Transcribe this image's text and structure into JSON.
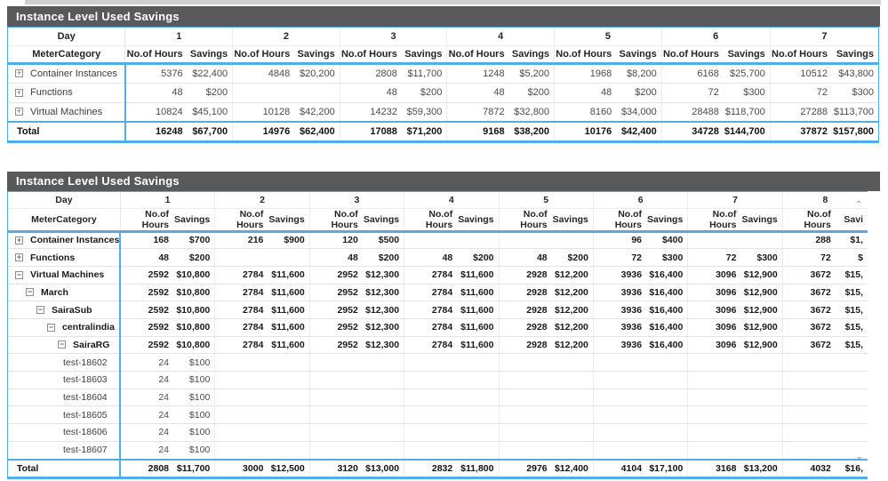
{
  "colors": {
    "accent_blue": "#55ACE0",
    "title_bar_bg": "#595959",
    "title_bar_text": "#FFFFFF",
    "gridline": "#E3E3E3",
    "body_text": "#4A4A4A",
    "bold_text": "#1A1A1A"
  },
  "icons": {
    "plus": "+",
    "minus": "−",
    "chevron_left": "‹",
    "chevron_right": "›"
  },
  "summary_table": {
    "title": "Instance Level Used Savings",
    "corner_day": "Day",
    "corner_category": "MeterCategory",
    "days": [
      {
        "label": "1",
        "sub": [
          "No.of Hours",
          "Savings"
        ]
      },
      {
        "label": "2",
        "sub": [
          "No.of Hours",
          "Savings"
        ]
      },
      {
        "label": "3",
        "sub": [
          "No.of Hours",
          "Savings"
        ]
      },
      {
        "label": "4",
        "sub": [
          "No.of Hours",
          "Savings"
        ]
      },
      {
        "label": "5",
        "sub": [
          "No.of Hours",
          "Savings"
        ]
      },
      {
        "label": "6",
        "sub": [
          "No.of Hours",
          "Savings"
        ]
      },
      {
        "label": "7",
        "sub": [
          "No.of Hours",
          "Savings"
        ]
      }
    ],
    "rows": [
      {
        "label": "Container Instances",
        "icon": "plus",
        "level": 0,
        "style": "normal",
        "cells": [
          "5376",
          "$22,400",
          "4848",
          "$20,200",
          "2808",
          "$11,700",
          "1248",
          "$5,200",
          "1968",
          "$8,200",
          "6168",
          "$25,700",
          "10512",
          "$43,800"
        ]
      },
      {
        "label": "Functions",
        "icon": "plus",
        "level": 0,
        "style": "normal",
        "cells": [
          "48",
          "$200",
          "",
          "",
          "48",
          "$200",
          "48",
          "$200",
          "48",
          "$200",
          "72",
          "$300",
          "72",
          "$300"
        ]
      },
      {
        "label": "Virtual Machines",
        "icon": "plus",
        "level": 0,
        "style": "normal",
        "cells": [
          "10824",
          "$45,100",
          "10128",
          "$42,200",
          "14232",
          "$59,300",
          "7872",
          "$32,800",
          "8160",
          "$34,000",
          "28488",
          "$118,700",
          "27288",
          "$113,700"
        ]
      },
      {
        "label": "Total",
        "icon": null,
        "level": 0,
        "style": "total",
        "cells": [
          "16248",
          "$67,700",
          "14976",
          "$62,400",
          "17088",
          "$71,200",
          "9168",
          "$38,200",
          "10176",
          "$42,400",
          "34728",
          "$144,700",
          "37872",
          "$157,800"
        ]
      }
    ]
  },
  "detail_table": {
    "title": "Instance Level Used Savings",
    "corner_day": "Day",
    "corner_category": "MeterCategory",
    "days": [
      {
        "label": "1",
        "sub": [
          "No.of Hours",
          "Savings"
        ]
      },
      {
        "label": "2",
        "sub": [
          "No.of Hours",
          "Savings"
        ]
      },
      {
        "label": "3",
        "sub": [
          "No.of Hours",
          "Savings"
        ]
      },
      {
        "label": "4",
        "sub": [
          "No.of Hours",
          "Savings"
        ]
      },
      {
        "label": "5",
        "sub": [
          "No.of Hours",
          "Savings"
        ]
      },
      {
        "label": "6",
        "sub": [
          "No.of Hours",
          "Savings"
        ]
      },
      {
        "label": "7",
        "sub": [
          "No.of Hours",
          "Savings"
        ]
      },
      {
        "label": "8",
        "sub": [
          "No.of Hours",
          "Savi"
        ]
      }
    ],
    "rows": [
      {
        "label": "Container Instances",
        "icon": "plus",
        "level": 0,
        "style": "bold",
        "cells": [
          "168",
          "$700",
          "216",
          "$900",
          "120",
          "$500",
          "",
          "",
          "",
          "",
          "96",
          "$400",
          "",
          "",
          "288",
          "$1,"
        ]
      },
      {
        "label": "Functions",
        "icon": "plus",
        "level": 0,
        "style": "bold",
        "cells": [
          "48",
          "$200",
          "",
          "",
          "48",
          "$200",
          "48",
          "$200",
          "48",
          "$200",
          "72",
          "$300",
          "72",
          "$300",
          "72",
          "$"
        ]
      },
      {
        "label": "Virtual Machines",
        "icon": "minus",
        "level": 0,
        "style": "bold",
        "cells": [
          "2592",
          "$10,800",
          "2784",
          "$11,600",
          "2952",
          "$12,300",
          "2784",
          "$11,600",
          "2928",
          "$12,200",
          "3936",
          "$16,400",
          "3096",
          "$12,900",
          "3672",
          "$15,"
        ]
      },
      {
        "label": "March",
        "icon": "minus",
        "level": 1,
        "style": "bold",
        "cells": [
          "2592",
          "$10,800",
          "2784",
          "$11,600",
          "2952",
          "$12,300",
          "2784",
          "$11,600",
          "2928",
          "$12,200",
          "3936",
          "$16,400",
          "3096",
          "$12,900",
          "3672",
          "$15,"
        ]
      },
      {
        "label": "SairaSub",
        "icon": "minus",
        "level": 2,
        "style": "bold",
        "cells": [
          "2592",
          "$10,800",
          "2784",
          "$11,600",
          "2952",
          "$12,300",
          "2784",
          "$11,600",
          "2928",
          "$12,200",
          "3936",
          "$16,400",
          "3096",
          "$12,900",
          "3672",
          "$15,"
        ]
      },
      {
        "label": "centralindia",
        "icon": "minus",
        "level": 3,
        "style": "bold",
        "cells": [
          "2592",
          "$10,800",
          "2784",
          "$11,600",
          "2952",
          "$12,300",
          "2784",
          "$11,600",
          "2928",
          "$12,200",
          "3936",
          "$16,400",
          "3096",
          "$12,900",
          "3672",
          "$15,"
        ]
      },
      {
        "label": "SairaRG",
        "icon": "minus",
        "level": 4,
        "style": "bold",
        "cells": [
          "2592",
          "$10,800",
          "2784",
          "$11,600",
          "2952",
          "$12,300",
          "2784",
          "$11,600",
          "2928",
          "$12,200",
          "3936",
          "$16,400",
          "3096",
          "$12,900",
          "3672",
          "$15,"
        ]
      },
      {
        "label": "test-18602",
        "icon": null,
        "level": 5,
        "style": "leaf",
        "cells": [
          "24",
          "$100",
          "",
          "",
          "",
          "",
          "",
          "",
          "",
          "",
          "",
          "",
          "",
          "",
          "",
          ""
        ]
      },
      {
        "label": "test-18603",
        "icon": null,
        "level": 5,
        "style": "leaf",
        "cells": [
          "24",
          "$100",
          "",
          "",
          "",
          "",
          "",
          "",
          "",
          "",
          "",
          "",
          "",
          "",
          "",
          ""
        ]
      },
      {
        "label": "test-18604",
        "icon": null,
        "level": 5,
        "style": "leaf",
        "cells": [
          "24",
          "$100",
          "",
          "",
          "",
          "",
          "",
          "",
          "",
          "",
          "",
          "",
          "",
          "",
          "",
          ""
        ]
      },
      {
        "label": "test-18605",
        "icon": null,
        "level": 5,
        "style": "leaf",
        "cells": [
          "24",
          "$100",
          "",
          "",
          "",
          "",
          "",
          "",
          "",
          "",
          "",
          "",
          "",
          "",
          "",
          ""
        ]
      },
      {
        "label": "test-18606",
        "icon": null,
        "level": 5,
        "style": "leaf",
        "cells": [
          "24",
          "$100",
          "",
          "",
          "",
          "",
          "",
          "",
          "",
          "",
          "",
          "",
          "",
          "",
          "",
          ""
        ]
      },
      {
        "label": "test-18607",
        "icon": null,
        "level": 5,
        "style": "leaf",
        "clipped": true,
        "cells": [
          "24",
          "$100",
          "",
          "",
          "",
          "",
          "",
          "",
          "",
          "",
          "",
          "",
          "",
          "",
          "",
          ""
        ]
      },
      {
        "label": "Total",
        "icon": null,
        "level": 0,
        "style": "total",
        "cells": [
          "2808",
          "$11,700",
          "3000",
          "$12,500",
          "3120",
          "$13,000",
          "2832",
          "$11,800",
          "2976",
          "$12,400",
          "4104",
          "$17,100",
          "3168",
          "$13,200",
          "4032",
          "$16,"
        ]
      }
    ]
  }
}
